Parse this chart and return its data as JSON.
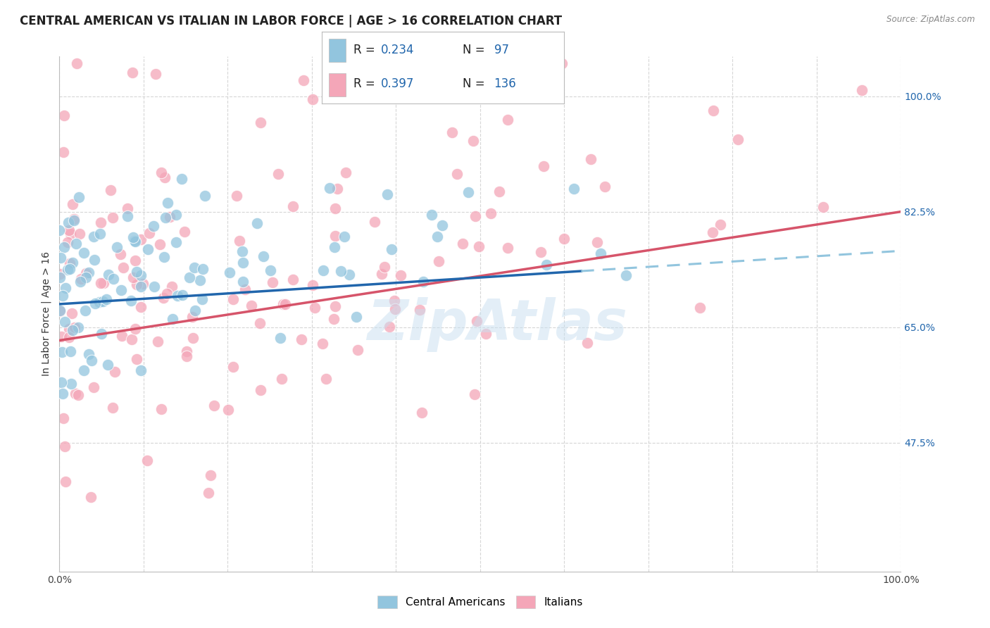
{
  "title": "CENTRAL AMERICAN VS ITALIAN IN LABOR FORCE | AGE > 16 CORRELATION CHART",
  "source": "Source: ZipAtlas.com",
  "ylabel": "In Labor Force | Age > 16",
  "yticks": [
    47.5,
    65.0,
    82.5,
    100.0
  ],
  "ytick_labels": [
    "47.5%",
    "65.0%",
    "82.5%",
    "100.0%"
  ],
  "legend_r_blue": "R = 0.234",
  "legend_n_blue": "N =  97",
  "legend_r_pink": "R = 0.397",
  "legend_n_pink": "N = 136",
  "blue_color": "#92c5de",
  "pink_color": "#f4a6b8",
  "trend_blue": "#2166ac",
  "trend_pink": "#d6546a",
  "trend_blue_dashed": "#92c5de",
  "background_color": "#ffffff",
  "grid_color": "#cccccc",
  "title_fontsize": 12,
  "axis_label_fontsize": 10,
  "tick_fontsize": 10,
  "blue_R": 0.234,
  "blue_N": 97,
  "pink_R": 0.397,
  "pink_N": 136,
  "xmin": 0.0,
  "xmax": 1.0,
  "ymin": 28.0,
  "ymax": 106.0,
  "watermark_color": "#c8dff0",
  "watermark_alpha": 0.5
}
